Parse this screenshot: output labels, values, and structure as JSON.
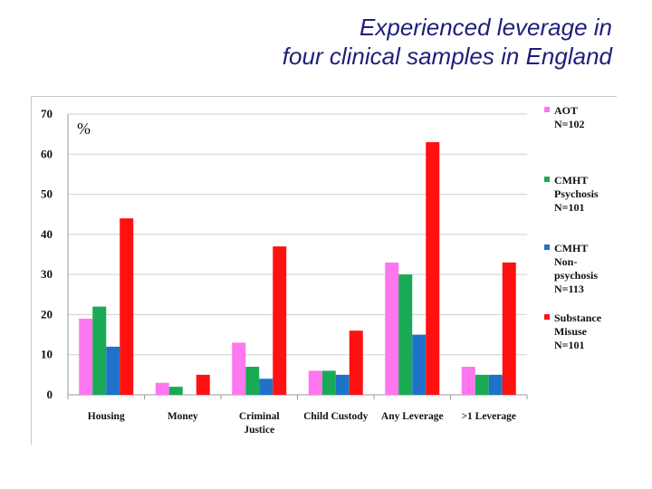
{
  "slide": {
    "title_line1": "Experienced leverage in",
    "title_line2": "four clinical samples in England"
  },
  "chart_data": {
    "type": "bar",
    "title": "",
    "xlabel": "",
    "ylabel": "%",
    "ylim": [
      0,
      70
    ],
    "yticks": [
      "0",
      "10",
      "20",
      "30",
      "40",
      "50",
      "60",
      "70"
    ],
    "grid": true,
    "legend_position": "right",
    "categories": [
      [
        "Housing"
      ],
      [
        "Money"
      ],
      [
        "Criminal",
        "Justice"
      ],
      [
        "Child Custody"
      ],
      [
        "Any Leverage"
      ],
      [
        ">1 Leverage"
      ]
    ],
    "series": [
      {
        "name": [
          "AOT",
          "N=102"
        ],
        "color": "#ff77ee",
        "values": [
          19,
          3,
          13,
          6,
          33,
          7
        ]
      },
      {
        "name": [
          "CMHT",
          "Psychosis",
          "N=101"
        ],
        "color": "#1aaa55",
        "values": [
          22,
          2,
          7,
          6,
          30,
          5
        ]
      },
      {
        "name": [
          "CMHT",
          "Non-",
          "psychosis",
          "N=113"
        ],
        "color": "#1e73c8",
        "values": [
          12,
          0,
          4,
          5,
          15,
          5
        ]
      },
      {
        "name": [
          "Substance",
          "Misuse",
          "N=101"
        ],
        "color": "#ff1111",
        "values": [
          44,
          5,
          37,
          16,
          63,
          33
        ]
      }
    ]
  }
}
